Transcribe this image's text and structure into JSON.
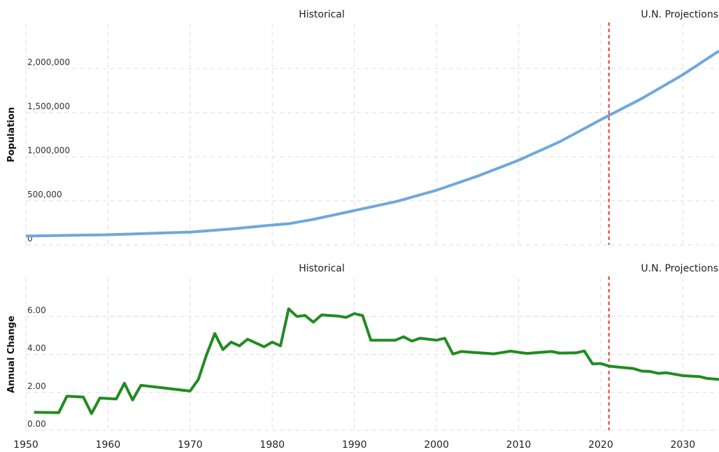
{
  "chart_data": [
    {
      "type": "line",
      "ylabel": "Population",
      "annotations": [
        "Historical",
        "U.N. Projections"
      ],
      "divider": 2021,
      "x": [
        1950,
        1960,
        1970,
        1975,
        1980,
        1982,
        1985,
        1990,
        1995,
        2000,
        2005,
        2010,
        2015,
        2020,
        2025,
        2030,
        2034.4
      ],
      "series": [
        {
          "name": "Population",
          "color": "#6fa8dc",
          "values": [
            100000,
            115000,
            145000,
            180000,
            225000,
            240000,
            290000,
            390000,
            490000,
            620000,
            780000,
            960000,
            1170000,
            1420000,
            1660000,
            1930000,
            2200000
          ]
        }
      ],
      "xlim": [
        1950,
        2034.4
      ],
      "xticks": [
        1950,
        1960,
        1970,
        1980,
        1990,
        2000,
        2010,
        2020,
        2030
      ],
      "ylim": [
        0,
        2500000
      ],
      "yticks": [
        0,
        {
          "value": 500000,
          "label": "500,000"
        },
        {
          "value": 1000000,
          "label": "1,000,000"
        },
        {
          "value": 1500000,
          "label": "1,500,000"
        },
        {
          "value": 2000000,
          "label": "2,000,000"
        }
      ],
      "grid": true
    },
    {
      "type": "line",
      "ylabel": "Annual Change",
      "annotations": [
        "Historical",
        "U.N. Projections"
      ],
      "divider": 2021,
      "x": [
        1951,
        1954,
        1955,
        1957,
        1958,
        1959,
        1961,
        1962,
        1963,
        1964,
        1966,
        1970,
        1971,
        1972,
        1973,
        1974,
        1975,
        1976,
        1977,
        1979,
        1980,
        1981,
        1982,
        1983,
        1984,
        1985,
        1986,
        1988,
        1989,
        1990,
        1991,
        1992,
        1995,
        1996,
        1997,
        1998,
        2000,
        2001,
        2002,
        2003,
        2007,
        2009,
        2011,
        2014,
        2015,
        2017,
        2018,
        2019,
        2020,
        2021,
        2024,
        2025,
        2026,
        2027,
        2028,
        2030,
        2032,
        2033,
        2034.4
      ],
      "series": [
        {
          "name": "Annual Change",
          "color": "#228b22",
          "values": [
            0.95,
            0.93,
            1.8,
            1.75,
            0.88,
            1.7,
            1.65,
            2.48,
            1.6,
            2.37,
            2.27,
            2.07,
            2.68,
            3.98,
            5.1,
            4.25,
            4.65,
            4.45,
            4.8,
            4.4,
            4.65,
            4.45,
            6.4,
            6.0,
            6.05,
            5.7,
            6.08,
            6.02,
            5.95,
            6.15,
            6.05,
            4.75,
            4.75,
            4.93,
            4.7,
            4.85,
            4.75,
            4.85,
            4.02,
            4.15,
            4.03,
            4.17,
            4.05,
            4.15,
            4.07,
            4.08,
            4.18,
            3.5,
            3.52,
            3.38,
            3.25,
            3.12,
            3.1,
            3.0,
            3.03,
            2.88,
            2.83,
            2.73,
            2.68
          ]
        }
      ],
      "xlim": [
        1950,
        2034.4
      ],
      "xticks": [
        1950,
        1960,
        1970,
        1980,
        1990,
        2000,
        2010,
        2020,
        2030
      ],
      "ylim": [
        0,
        8
      ],
      "yticks": [
        {
          "value": 0,
          "label": "0.00"
        },
        {
          "value": 2,
          "label": "2.00"
        },
        {
          "value": 4,
          "label": "4.00"
        },
        {
          "value": 6,
          "label": "6.00"
        }
      ],
      "grid": true,
      "show_xtick_labels": true
    }
  ]
}
